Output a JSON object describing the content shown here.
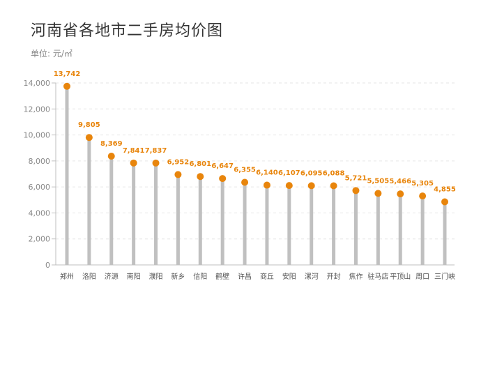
{
  "title": "河南省各地市二手房均价图",
  "unit_label": "单位: 元/㎡",
  "colors": {
    "stem": "#c0c0c0",
    "point": "#e8850c",
    "label": "#e8850c",
    "axis": "#bfbfbf",
    "grid": "#e6e6e6"
  },
  "chart_data": {
    "type": "lollipop",
    "title": "河南省各地市二手房均价图",
    "ylabel": "单位: 元/㎡",
    "xlabel": "",
    "ylim": [
      0,
      14000
    ],
    "yticks": [
      0,
      2000,
      4000,
      6000,
      8000,
      10000,
      12000,
      14000
    ],
    "ytick_labels": [
      "0",
      "2,000",
      "4,000",
      "6,000",
      "8,000",
      "10,000",
      "12,000",
      "14,000"
    ],
    "grid": true,
    "categories": [
      "郑州",
      "洛阳",
      "济源",
      "南阳",
      "濮阳",
      "新乡",
      "信阳",
      "鹤壁",
      "许昌",
      "商丘",
      "安阳",
      "漯河",
      "开封",
      "焦作",
      "驻马店",
      "平顶山",
      "周口",
      "三门峡"
    ],
    "values": [
      13742,
      9805,
      8369,
      7841,
      7837,
      6952,
      6801,
      6647,
      6355,
      6140,
      6107,
      6095,
      6088,
      5721,
      5505,
      5466,
      5305,
      4855
    ],
    "value_labels": [
      "13,742",
      "9,805",
      "8,369",
      "7,841",
      "7,837",
      "6,952",
      "6,801",
      "6,647",
      "6,355",
      "6,140",
      "6,107",
      "6,095",
      "6,088",
      "5,721",
      "5,505",
      "5,466",
      "5,305",
      "4,855"
    ]
  }
}
